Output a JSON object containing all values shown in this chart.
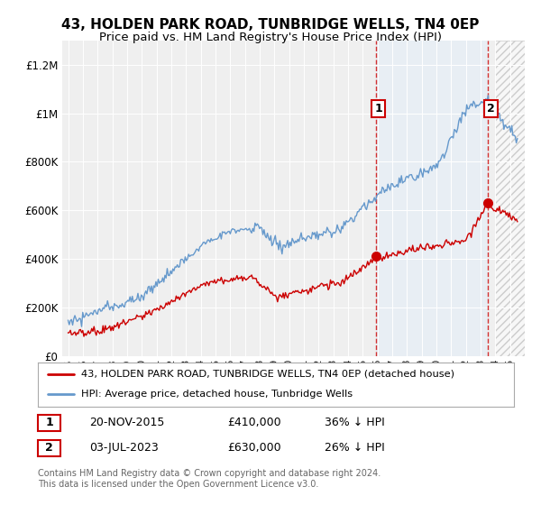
{
  "title": "43, HOLDEN PARK ROAD, TUNBRIDGE WELLS, TN4 0EP",
  "subtitle": "Price paid vs. HM Land Registry's House Price Index (HPI)",
  "hpi_label": "HPI: Average price, detached house, Tunbridge Wells",
  "property_label": "43, HOLDEN PARK ROAD, TUNBRIDGE WELLS, TN4 0EP (detached house)",
  "sale1_date": "20-NOV-2015",
  "sale1_price": 410000,
  "sale1_pct": "36% ↓ HPI",
  "sale2_date": "03-JUL-2023",
  "sale2_price": 630000,
  "sale2_pct": "26% ↓ HPI",
  "footnote1": "Contains HM Land Registry data © Crown copyright and database right 2024.",
  "footnote2": "This data is licensed under the Open Government Licence v3.0.",
  "hpi_color": "#6699cc",
  "property_color": "#cc0000",
  "vline_color": "#cc0000",
  "background_color": "#ffffff",
  "plot_bg_color": "#efefef",
  "ylim_max": 1300000,
  "sale1_x": 2015.875,
  "sale2_x": 2023.5
}
